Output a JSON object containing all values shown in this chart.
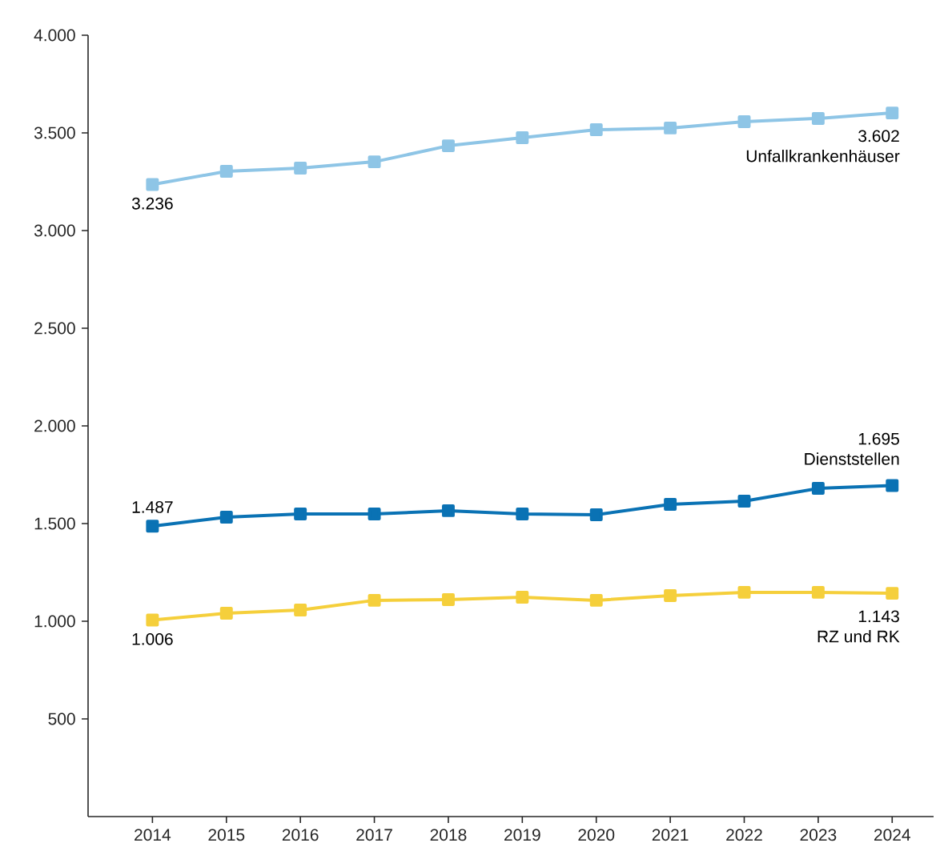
{
  "chart_data": {
    "type": "line",
    "categories": [
      "2014",
      "2015",
      "2016",
      "2017",
      "2018",
      "2019",
      "2020",
      "2021",
      "2022",
      "2023",
      "2024"
    ],
    "ylim": [
      0,
      4000
    ],
    "yticks": [
      {
        "value": 500,
        "label": "500"
      },
      {
        "value": 1000,
        "label": "1.000"
      },
      {
        "value": 1500,
        "label": "1.500"
      },
      {
        "value": 2000,
        "label": "2.000"
      },
      {
        "value": 2500,
        "label": "2.500"
      },
      {
        "value": 3000,
        "label": "3.000"
      },
      {
        "value": 3500,
        "label": "3.500"
      },
      {
        "value": 4000,
        "label": "4.000"
      }
    ],
    "marker": "square",
    "line_style": "solid",
    "grid": false,
    "legend": false,
    "series": [
      {
        "name": "Unfallkrankenhäuser",
        "color": "#8ec5e6",
        "values": [
          3236,
          3303,
          3320,
          3352,
          3434,
          3475,
          3516,
          3525,
          3557,
          3574,
          3602
        ],
        "value_labels": [
          "3.236",
          null,
          null,
          null,
          null,
          null,
          null,
          null,
          null,
          null,
          "3.602"
        ]
      },
      {
        "name": "Dienststellen",
        "color": "#0a72b4",
        "values": [
          1487,
          1533,
          1549,
          1549,
          1566,
          1549,
          1545,
          1598,
          1615,
          1680,
          1695
        ],
        "value_labels": [
          "1.487",
          null,
          null,
          null,
          null,
          null,
          null,
          null,
          null,
          null,
          "1.695"
        ]
      },
      {
        "name": "RZ und RK",
        "color": "#f5cf3b",
        "values": [
          1006,
          1041,
          1057,
          1107,
          1111,
          1123,
          1107,
          1131,
          1148,
          1148,
          1143
        ],
        "value_labels": [
          "1.006",
          null,
          null,
          null,
          null,
          null,
          null,
          null,
          null,
          null,
          "1.143"
        ]
      }
    ]
  }
}
